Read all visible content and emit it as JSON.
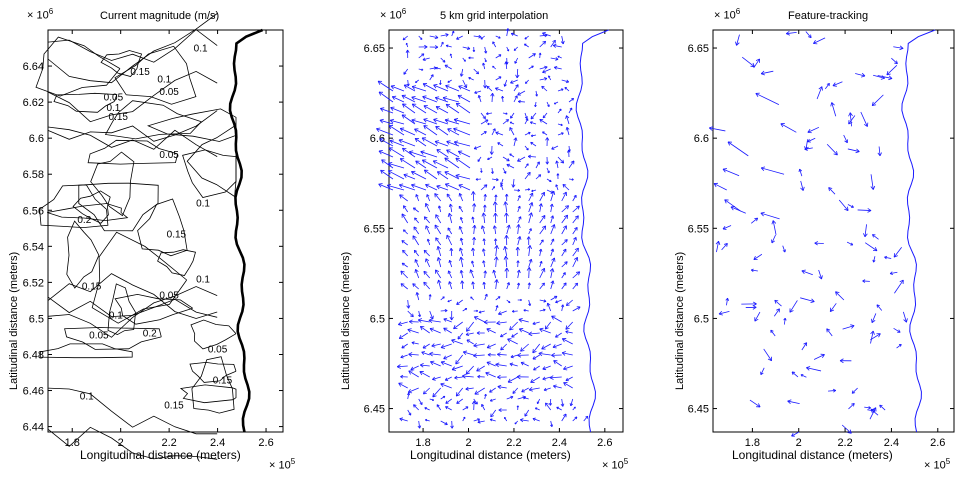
{
  "chart_data": [
    {
      "type": "contour",
      "title": "Current magnitude (m/s)",
      "xlabel": "Longitudinal distance (meters)",
      "ylabel": "Latitudinal distance (meters)",
      "x_exponent_base": "× 10",
      "x_exponent": "5",
      "y_exponent_base": "× 10",
      "y_exponent": "6",
      "xlim": [
        1.7,
        2.67
      ],
      "ylim": [
        6.437,
        6.66
      ],
      "xticks": [
        "1.8",
        "2",
        "2.2",
        "2.4",
        "2.6"
      ],
      "xtick_values": [
        1.8,
        2.0,
        2.2,
        2.4,
        2.6
      ],
      "yticks": [
        "6.44",
        "6.46",
        "6.48",
        "6.5",
        "6.52",
        "6.54",
        "6.56",
        "6.58",
        "6.6",
        "6.62",
        "6.64"
      ],
      "ytick_values": [
        6.44,
        6.46,
        6.48,
        6.5,
        6.52,
        6.54,
        6.56,
        6.58,
        6.6,
        6.62,
        6.64
      ],
      "contour_labels": [
        {
          "text": "0.1",
          "x": 2.33,
          "y": 6.648
        },
        {
          "text": "0.15",
          "x": 2.08,
          "y": 6.635
        },
        {
          "text": "0.1",
          "x": 2.18,
          "y": 6.631
        },
        {
          "text": "0.05",
          "x": 2.2,
          "y": 6.624
        },
        {
          "text": "0.05",
          "x": 1.97,
          "y": 6.621
        },
        {
          "text": "0.1",
          "x": 1.97,
          "y": 6.615
        },
        {
          "text": "0.15",
          "x": 1.99,
          "y": 6.61
        },
        {
          "text": "0.05",
          "x": 2.2,
          "y": 6.589
        },
        {
          "text": "0.1",
          "x": 2.34,
          "y": 6.562
        },
        {
          "text": "0.2",
          "x": 1.85,
          "y": 6.553
        },
        {
          "text": "0.15",
          "x": 2.23,
          "y": 6.545
        },
        {
          "text": "0.1",
          "x": 2.34,
          "y": 6.52
        },
        {
          "text": "0.15",
          "x": 1.88,
          "y": 6.516
        },
        {
          "text": "0.05",
          "x": 2.2,
          "y": 6.511
        },
        {
          "text": "0.1",
          "x": 1.98,
          "y": 6.5
        },
        {
          "text": "0.2",
          "x": 2.12,
          "y": 6.49
        },
        {
          "text": "0.05",
          "x": 1.91,
          "y": 6.489
        },
        {
          "text": "0.05",
          "x": 2.4,
          "y": 6.481
        },
        {
          "text": "0.15",
          "x": 2.42,
          "y": 6.464
        },
        {
          "text": "0.1",
          "x": 1.86,
          "y": 6.455
        },
        {
          "text": "0.15",
          "x": 2.22,
          "y": 6.45
        }
      ]
    },
    {
      "type": "quiver",
      "title": "5 km grid interpolation",
      "xlabel": "Longitudinal distance (meters)",
      "ylabel": "Latitudinal distance (meters)",
      "x_exponent_base": "× 10",
      "x_exponent": "5",
      "y_exponent_base": "× 10",
      "y_exponent": "6",
      "xlim": [
        1.65,
        2.68
      ],
      "ylim": [
        6.437,
        6.66
      ],
      "xticks": [
        "1.8",
        "2",
        "2.2",
        "2.4",
        "2.6"
      ],
      "xtick_values": [
        1.8,
        2.0,
        2.2,
        2.4,
        2.6
      ],
      "yticks": [
        "6.45",
        "6.5",
        "6.55",
        "6.6",
        "6.65"
      ],
      "ytick_values": [
        6.45,
        6.5,
        6.55,
        6.6,
        6.65
      ],
      "arrow_color": "#1a1aff"
    },
    {
      "type": "quiver",
      "title": "Feature-tracking",
      "xlabel": "Longitudinal distance (meters)",
      "ylabel": "Latitudinal distance (meters)",
      "x_exponent_base": "× 10",
      "x_exponent": "5",
      "y_exponent_base": "× 10",
      "y_exponent": "6",
      "xlim": [
        1.63,
        2.67
      ],
      "ylim": [
        6.437,
        6.66
      ],
      "xticks": [
        "1.8",
        "2",
        "2.2",
        "2.4",
        "2.6"
      ],
      "xtick_values": [
        1.8,
        2.0,
        2.2,
        2.4,
        2.6
      ],
      "yticks": [
        "6.45",
        "6.5",
        "6.55",
        "6.6",
        "6.65"
      ],
      "ytick_values": [
        6.45,
        6.5,
        6.55,
        6.6,
        6.65
      ],
      "arrow_color": "#1a1aff"
    }
  ]
}
